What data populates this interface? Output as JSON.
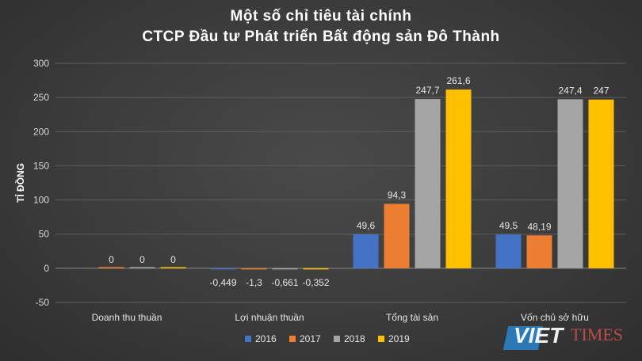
{
  "chart_data": {
    "type": "bar",
    "title": "Một số chỉ tiêu tài chính",
    "subtitle": "CTCP Đầu tư Phát triển Bất động sản Đô Thành",
    "xlabel": "",
    "ylabel": "Tỉ đồng",
    "ylim": [
      -50,
      300
    ],
    "yticks": [
      -50,
      0,
      50,
      100,
      150,
      200,
      250,
      300
    ],
    "grid": true,
    "legend_position": "bottom",
    "categories": [
      "Doanh thu thuần",
      "Lợi nhuận thuần",
      "Tổng tài sản",
      "Vốn chủ sở hữu"
    ],
    "series": [
      {
        "name": "2016",
        "color": "#4472c4",
        "values": [
          null,
          -0.449,
          49.6,
          49.5
        ],
        "labels": [
          "",
          "-0,449",
          "49,6",
          "49,5"
        ]
      },
      {
        "name": "2017",
        "color": "#ed7d31",
        "values": [
          0,
          -1.3,
          94.3,
          48.19
        ],
        "labels": [
          "0",
          "-1,3",
          "94,3",
          "48,19"
        ]
      },
      {
        "name": "2018",
        "color": "#a5a5a5",
        "values": [
          0,
          -0.661,
          247.7,
          247.4
        ],
        "labels": [
          "0",
          "-0,661",
          "247,7",
          "247,4"
        ]
      },
      {
        "name": "2019",
        "color": "#ffc000",
        "values": [
          0,
          -0.352,
          261.6,
          247
        ],
        "labels": [
          "0",
          "-0,352",
          "261,6",
          "247"
        ]
      }
    ]
  },
  "watermark": {
    "brand": "VIET",
    "brand2": "TIMES"
  }
}
